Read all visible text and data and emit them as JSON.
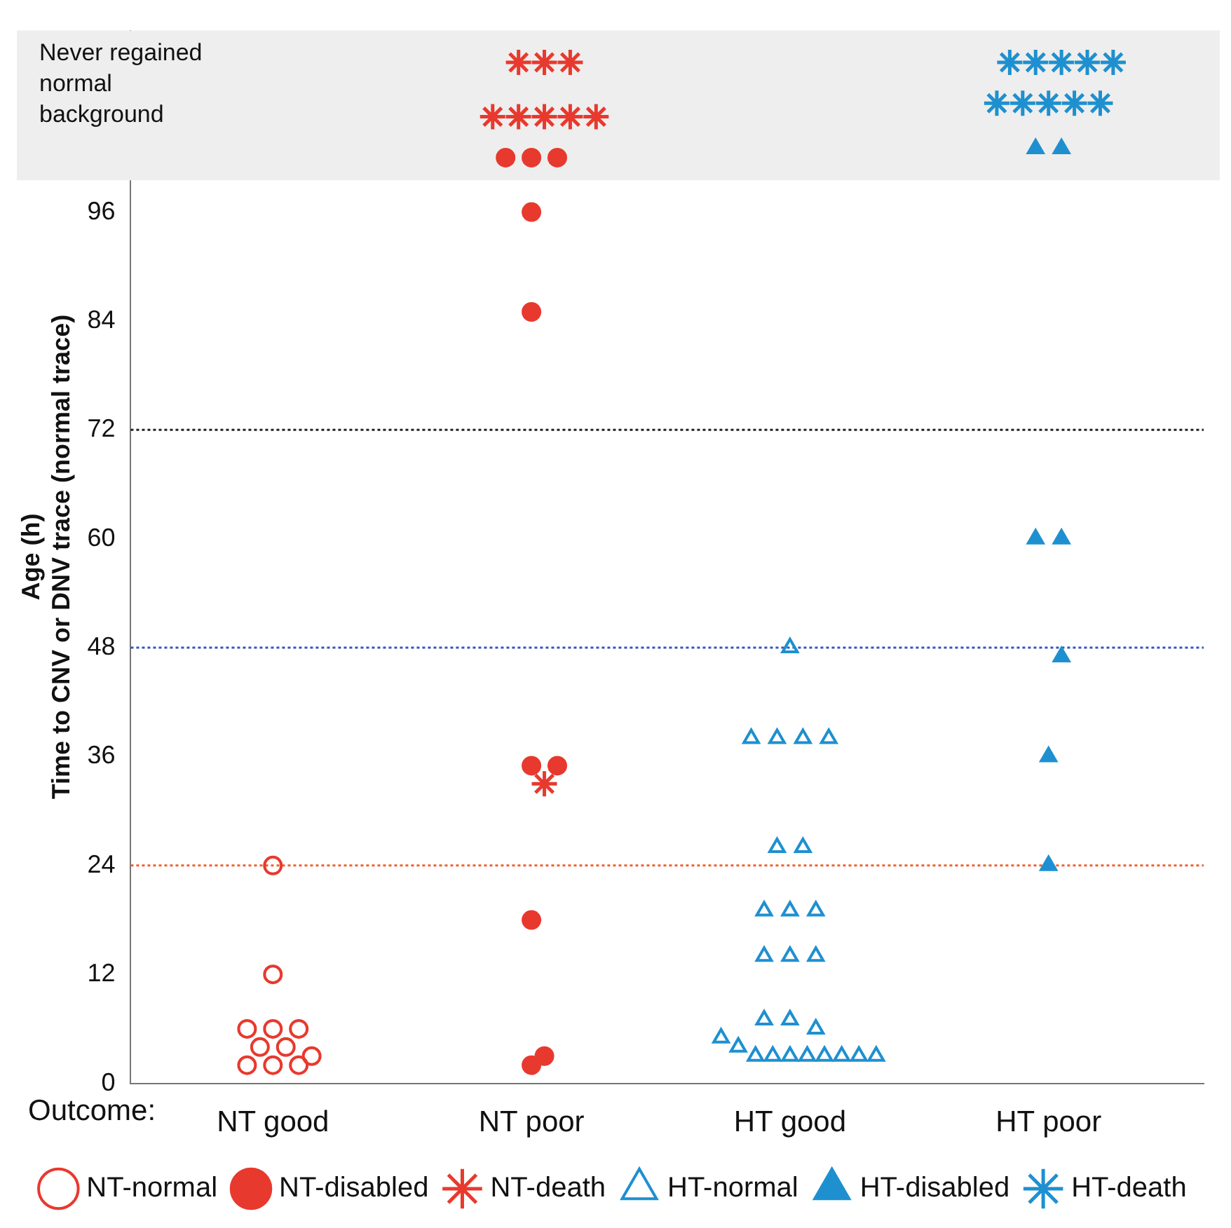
{
  "chart_data": {
    "type": "scatter",
    "xlabel": "Outcome:",
    "ylabel": "Age (h)\nTime to CNV or DNV trace (normal trace)",
    "categories": [
      "NT good",
      "NT poor",
      "HT good",
      "HT poor"
    ],
    "ylim": [
      0,
      116
    ],
    "yticks": [
      0,
      12,
      24,
      36,
      48,
      60,
      72,
      84,
      96
    ],
    "grid": false,
    "legend": "bottom",
    "series": [
      {
        "name": "NT-normal",
        "color": "#e8392e",
        "marker": "circle",
        "x": [
          "NT good",
          "NT good",
          "NT good",
          "NT good",
          "NT good",
          "NT good",
          "NT good",
          "NT good",
          "NT good",
          "NT good",
          "NT good"
        ],
        "values": [
          24,
          12,
          6,
          6,
          6,
          4,
          4,
          3,
          2,
          2,
          2
        ]
      },
      {
        "name": "NT-disabled",
        "color": "#e8392e",
        "marker": "circle",
        "x": [
          "NT poor",
          "NT poor",
          "NT poor",
          "NT poor",
          "NT poor",
          "NT poor",
          "NT poor",
          "NT poor",
          "NT poor",
          "NT poor"
        ],
        "values": [
          96,
          85,
          35,
          35,
          18,
          3,
          2,
          102,
          102,
          102
        ]
      },
      {
        "name": "NT-death",
        "color": "#e8392e",
        "marker": "cross",
        "x": [
          "NT poor",
          "NT poor",
          "NT poor",
          "NT poor",
          "NT poor",
          "NT poor",
          "NT poor",
          "NT poor",
          "NT poor"
        ],
        "values": [
          33,
          106.5,
          106.5,
          106.5,
          106.5,
          106.5,
          112.5,
          112.5,
          112.5
        ]
      },
      {
        "name": "HT-normal",
        "color": "#1e90d0",
        "marker": "triangle",
        "x": [
          "HT good",
          "HT good",
          "HT good",
          "HT good",
          "HT good",
          "HT good",
          "HT good",
          "HT good",
          "HT good",
          "HT good",
          "HT good",
          "HT good",
          "HT good",
          "HT good",
          "HT good",
          "HT good",
          "HT good",
          "HT good",
          "HT good",
          "HT good",
          "HT good",
          "HT good",
          "HT good",
          "HT good",
          "HT good",
          "HT good"
        ],
        "values": [
          48,
          38,
          38,
          38,
          38,
          26,
          26,
          19,
          19,
          19,
          14,
          14,
          14,
          7,
          7,
          6,
          5,
          4,
          3,
          3,
          3,
          3,
          3,
          3,
          3,
          3
        ]
      },
      {
        "name": "HT-disabled",
        "color": "#1e90d0",
        "marker": "triangle",
        "x": [
          "HT poor",
          "HT poor",
          "HT poor",
          "HT poor",
          "HT poor",
          "HT poor",
          "HT poor"
        ],
        "values": [
          60,
          60,
          47,
          36,
          24,
          103,
          103
        ]
      },
      {
        "name": "HT-death",
        "color": "#1e90d0",
        "marker": "cross",
        "x": [
          "HT poor",
          "HT poor",
          "HT poor",
          "HT poor",
          "HT poor",
          "HT poor",
          "HT poor",
          "HT poor",
          "HT poor",
          "HT poor"
        ],
        "values": [
          108,
          108,
          108,
          108,
          108,
          112.5,
          112.5,
          112.5,
          112.5,
          112.5
        ]
      }
    ],
    "ref_lines": [
      {
        "axis": "y",
        "value": 72,
        "color": "#222222",
        "line_style": "dotted"
      },
      {
        "axis": "y",
        "value": 48,
        "color": "#3355bb",
        "line_style": "dotted"
      },
      {
        "axis": "y",
        "value": 24,
        "color": "#f06030",
        "line_style": "dotted"
      }
    ],
    "bands": [
      {
        "axis": "y",
        "from": 99.5,
        "to": 116,
        "label": "Never regained normal background",
        "color": "#eeeeee"
      }
    ]
  }
}
